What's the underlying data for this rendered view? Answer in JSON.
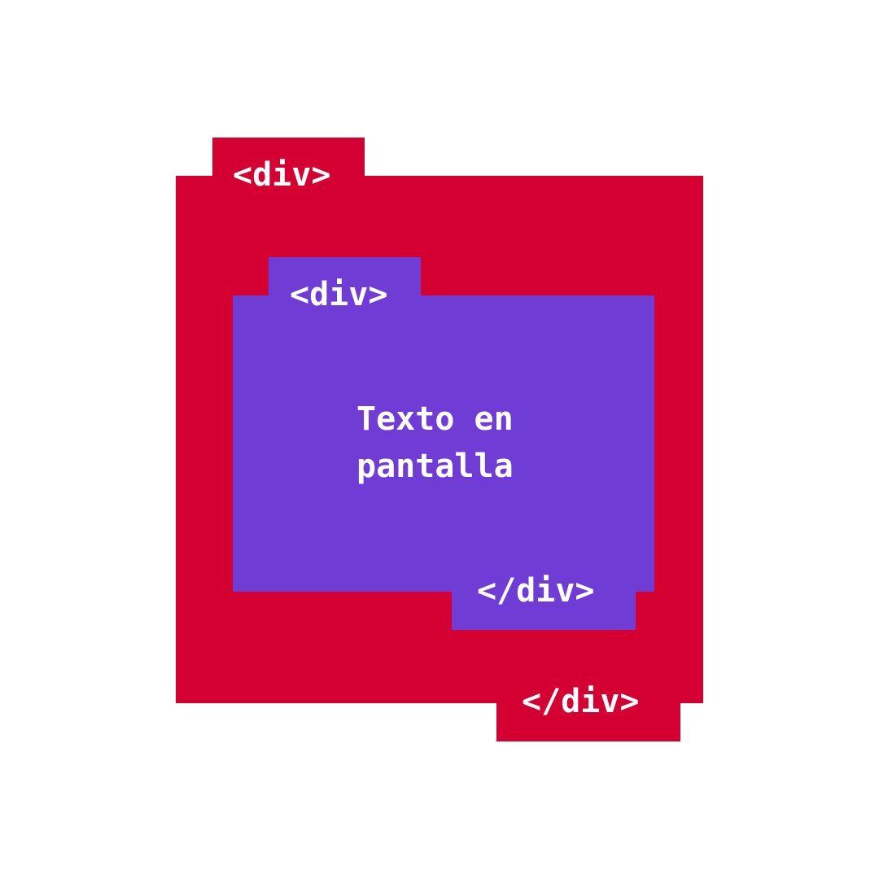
{
  "colors": {
    "outer": "#d50032",
    "inner": "#6f3dd6",
    "text": "#ffffff",
    "background": "#ffffff"
  },
  "outer_div": {
    "open_tag": "<div>",
    "close_tag": "</div>"
  },
  "inner_div": {
    "open_tag": "<div>",
    "close_tag": "</div>",
    "content_line1": "Texto en",
    "content_line2": "pantalla"
  }
}
